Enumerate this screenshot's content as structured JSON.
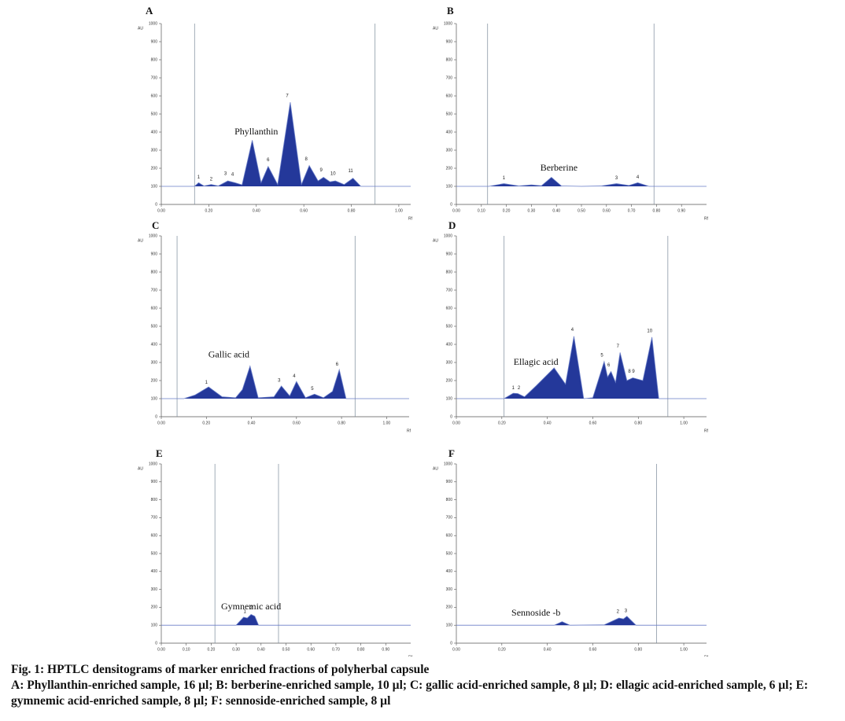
{
  "chart_data": [
    {
      "type": "line",
      "panel": "A",
      "ylabel": "AU",
      "xlabel": "Rf",
      "color": "#24389a",
      "xlim": [
        0,
        1.05
      ],
      "ylim": [
        0,
        1000
      ],
      "xticks": [
        {
          "value": 0,
          "label": "0.00"
        },
        {
          "value": 0.2,
          "label": "0.20"
        },
        {
          "value": 0.4,
          "label": "0.40"
        },
        {
          "value": 0.6,
          "label": "0.60"
        },
        {
          "value": 0.8,
          "label": "0.80"
        },
        {
          "value": 1.0,
          "label": "1.00"
        }
      ],
      "yticks": [
        0,
        100,
        200,
        300,
        400,
        500,
        600,
        700,
        800,
        900,
        1000
      ],
      "vlines": [
        0.14,
        0.9
      ],
      "x": [
        0,
        0.12,
        0.14,
        0.157,
        0.18,
        0.21,
        0.24,
        0.28,
        0.31,
        0.34,
        0.383,
        0.42,
        0.45,
        0.49,
        0.543,
        0.59,
        0.623,
        0.66,
        0.683,
        0.71,
        0.733,
        0.77,
        0.807,
        0.84,
        1.05
      ],
      "values": [
        100,
        100,
        100,
        120,
        102,
        110,
        102,
        130,
        120,
        108,
        355,
        120,
        210,
        110,
        565,
        110,
        215,
        130,
        150,
        125,
        130,
        110,
        145,
        100,
        100
      ],
      "peak_labels": [
        {
          "text": "1",
          "x": 0.157,
          "y": 150
        },
        {
          "text": "2",
          "x": 0.21,
          "y": 140
        },
        {
          "text": "3",
          "x": 0.27,
          "y": 170
        },
        {
          "text": "4",
          "x": 0.3,
          "y": 165
        },
        {
          "text": "6",
          "x": 0.45,
          "y": 245
        },
        {
          "text": "7",
          "x": 0.53,
          "y": 600
        },
        {
          "text": "8",
          "x": 0.61,
          "y": 250
        },
        {
          "text": "9",
          "x": 0.673,
          "y": 190
        },
        {
          "text": "10",
          "x": 0.723,
          "y": 170
        },
        {
          "text": "11",
          "x": 0.797,
          "y": 185
        }
      ],
      "annotation": {
        "text": "Phyllanthin",
        "x": 0.4,
        "y": 400
      }
    },
    {
      "type": "line",
      "panel": "B",
      "ylabel": "AU",
      "xlabel": "Rf",
      "color": "#24389a",
      "xlim": [
        0,
        1.0
      ],
      "ylim": [
        0,
        1000
      ],
      "xticks": [
        {
          "value": 0,
          "label": "0.00"
        },
        {
          "value": 0.1,
          "label": "0.10"
        },
        {
          "value": 0.2,
          "label": "0.20"
        },
        {
          "value": 0.3,
          "label": "0.30"
        },
        {
          "value": 0.4,
          "label": "0.40"
        },
        {
          "value": 0.5,
          "label": "0.50"
        },
        {
          "value": 0.6,
          "label": "0.60"
        },
        {
          "value": 0.7,
          "label": "0.70"
        },
        {
          "value": 0.8,
          "label": "0.80"
        },
        {
          "value": 0.9,
          "label": "0.90"
        }
      ],
      "yticks": [
        0,
        100,
        200,
        300,
        400,
        500,
        600,
        700,
        800,
        900,
        1000
      ],
      "vlines": [
        0.125,
        0.79
      ],
      "x": [
        0,
        0.13,
        0.19,
        0.25,
        0.3,
        0.34,
        0.38,
        0.42,
        0.5,
        0.58,
        0.64,
        0.69,
        0.725,
        0.77,
        1.0
      ],
      "values": [
        100,
        100,
        115,
        102,
        108,
        103,
        150,
        102,
        100,
        102,
        115,
        105,
        120,
        100,
        100
      ],
      "peak_labels": [
        {
          "text": "1",
          "x": 0.19,
          "y": 145
        },
        {
          "text": "3",
          "x": 0.64,
          "y": 145
        },
        {
          "text": "4",
          "x": 0.725,
          "y": 150
        }
      ],
      "annotation": {
        "text": "Berberine",
        "x": 0.41,
        "y": 200
      }
    },
    {
      "type": "line",
      "panel": "C",
      "ylabel": "AU",
      "xlabel": "Rf",
      "color": "#24389a",
      "xlim": [
        0,
        1.1
      ],
      "ylim": [
        0,
        1000
      ],
      "xticks": [
        {
          "value": 0,
          "label": "0.00"
        },
        {
          "value": 0.2,
          "label": "0.20"
        },
        {
          "value": 0.4,
          "label": "0.40"
        },
        {
          "value": 0.6,
          "label": "0.60"
        },
        {
          "value": 0.8,
          "label": "0.80"
        },
        {
          "value": 1.0,
          "label": "1.00"
        }
      ],
      "yticks": [
        0,
        100,
        200,
        300,
        400,
        500,
        600,
        700,
        800,
        900,
        1000
      ],
      "vlines": [
        0.07,
        0.86
      ],
      "x": [
        0,
        0.1,
        0.15,
        0.21,
        0.27,
        0.33,
        0.36,
        0.394,
        0.43,
        0.5,
        0.533,
        0.57,
        0.6,
        0.64,
        0.68,
        0.72,
        0.76,
        0.79,
        0.82,
        1.1
      ],
      "values": [
        100,
        100,
        120,
        165,
        110,
        105,
        150,
        280,
        105,
        110,
        170,
        115,
        195,
        105,
        125,
        105,
        140,
        260,
        100,
        100
      ],
      "peak_labels": [
        {
          "text": "1",
          "x": 0.2,
          "y": 190
        },
        {
          "text": "3",
          "x": 0.523,
          "y": 200
        },
        {
          "text": "4",
          "x": 0.59,
          "y": 225
        },
        {
          "text": "5",
          "x": 0.67,
          "y": 155
        },
        {
          "text": "6",
          "x": 0.78,
          "y": 290
        }
      ],
      "annotation": {
        "text": "Gallic acid",
        "x": 0.3,
        "y": 340
      }
    },
    {
      "type": "line",
      "panel": "D",
      "ylabel": "AU",
      "xlabel": "Rf",
      "color": "#24389a",
      "xlim": [
        0,
        1.1
      ],
      "ylim": [
        0,
        1000
      ],
      "xticks": [
        {
          "value": 0,
          "label": "0.00"
        },
        {
          "value": 0.2,
          "label": "0.20"
        },
        {
          "value": 0.4,
          "label": "0.40"
        },
        {
          "value": 0.6,
          "label": "0.60"
        },
        {
          "value": 0.8,
          "label": "0.80"
        },
        {
          "value": 1.0,
          "label": "1.00"
        }
      ],
      "yticks": [
        0,
        100,
        200,
        300,
        400,
        500,
        600,
        700,
        800,
        900,
        1000
      ],
      "vlines": [
        0.21,
        0.93
      ],
      "x": [
        0,
        0.21,
        0.25,
        0.27,
        0.3,
        0.35,
        0.43,
        0.48,
        0.517,
        0.56,
        0.6,
        0.65,
        0.665,
        0.68,
        0.7,
        0.72,
        0.75,
        0.776,
        0.82,
        0.86,
        0.89,
        1.1
      ],
      "values": [
        100,
        100,
        130,
        128,
        110,
        170,
        270,
        180,
        445,
        100,
        105,
        305,
        220,
        250,
        190,
        355,
        200,
        215,
        200,
        440,
        100,
        100
      ],
      "peak_labels": [
        {
          "text": "1",
          "x": 0.25,
          "y": 160
        },
        {
          "text": "2",
          "x": 0.275,
          "y": 160
        },
        {
          "text": "4",
          "x": 0.51,
          "y": 480
        },
        {
          "text": "5",
          "x": 0.64,
          "y": 340
        },
        {
          "text": "6",
          "x": 0.67,
          "y": 285
        },
        {
          "text": "7",
          "x": 0.71,
          "y": 390
        },
        {
          "text": "8 9",
          "x": 0.77,
          "y": 250
        },
        {
          "text": "10",
          "x": 0.85,
          "y": 475
        }
      ],
      "annotation": {
        "text": "Ellagic acid",
        "x": 0.35,
        "y": 300
      }
    },
    {
      "type": "line",
      "panel": "E",
      "ylabel": "AU",
      "xlabel": "Rf",
      "color": "#24389a",
      "xlim": [
        0,
        1.0
      ],
      "ylim": [
        0,
        1000
      ],
      "xticks": [
        {
          "value": 0,
          "label": "0.00"
        },
        {
          "value": 0.1,
          "label": "0.10"
        },
        {
          "value": 0.2,
          "label": "0.20"
        },
        {
          "value": 0.3,
          "label": "0.30"
        },
        {
          "value": 0.4,
          "label": "0.40"
        },
        {
          "value": 0.5,
          "label": "0.50"
        },
        {
          "value": 0.6,
          "label": "0.60"
        },
        {
          "value": 0.7,
          "label": "0.70"
        },
        {
          "value": 0.8,
          "label": "0.80"
        },
        {
          "value": 0.9,
          "label": "0.90"
        }
      ],
      "yticks": [
        0,
        100,
        200,
        300,
        400,
        500,
        600,
        700,
        800,
        900,
        1000
      ],
      "vlines": [
        0.215,
        0.47
      ],
      "x": [
        0,
        0.3,
        0.33,
        0.345,
        0.36,
        0.375,
        0.39,
        1.0
      ],
      "values": [
        100,
        100,
        145,
        140,
        160,
        150,
        100,
        100
      ],
      "peak_labels": [
        {
          "text": "1",
          "x": 0.335,
          "y": 175
        },
        {
          "text": "2",
          "x": 0.36,
          "y": 195
        }
      ],
      "annotation": {
        "text": "Gymnemic acid",
        "x": 0.36,
        "y": 200
      }
    },
    {
      "type": "line",
      "panel": "F",
      "ylabel": "AU",
      "xlabel": "Rf",
      "color": "#24389a",
      "xlim": [
        0,
        1.1
      ],
      "ylim": [
        0,
        1000
      ],
      "xticks": [
        {
          "value": 0,
          "label": "0.00"
        },
        {
          "value": 0.2,
          "label": "0.20"
        },
        {
          "value": 0.4,
          "label": "0.40"
        },
        {
          "value": 0.6,
          "label": "0.60"
        },
        {
          "value": 0.8,
          "label": "0.80"
        },
        {
          "value": 1.0,
          "label": "1.00"
        }
      ],
      "yticks": [
        0,
        100,
        200,
        300,
        400,
        500,
        600,
        700,
        800,
        900,
        1000
      ],
      "vlines": [
        0.88
      ],
      "x": [
        0,
        0.43,
        0.465,
        0.5,
        0.65,
        0.715,
        0.735,
        0.75,
        0.79,
        1.1
      ],
      "values": [
        100,
        100,
        120,
        100,
        102,
        140,
        135,
        150,
        100,
        100
      ],
      "peak_labels": [
        {
          "text": "2",
          "x": 0.71,
          "y": 175
        },
        {
          "text": "3",
          "x": 0.745,
          "y": 180
        }
      ],
      "annotation": {
        "text": "Sennoside -b",
        "x": 0.35,
        "y": 165
      }
    }
  ],
  "caption": {
    "title": "Fig. 1: HPTLC densitograms of marker enriched fractions of polyherbal capsule",
    "text": "A: Phyllanthin-enriched sample, 16 µl; B: berberine-enriched sample, 10 µl; C: gallic acid-enriched sample, 8 µl; D: ellagic acid-enriched sample, 6 µl; E: gymnemic acid-enriched sample, 8 µl; F: sennoside-enriched sample, 8 µl"
  }
}
